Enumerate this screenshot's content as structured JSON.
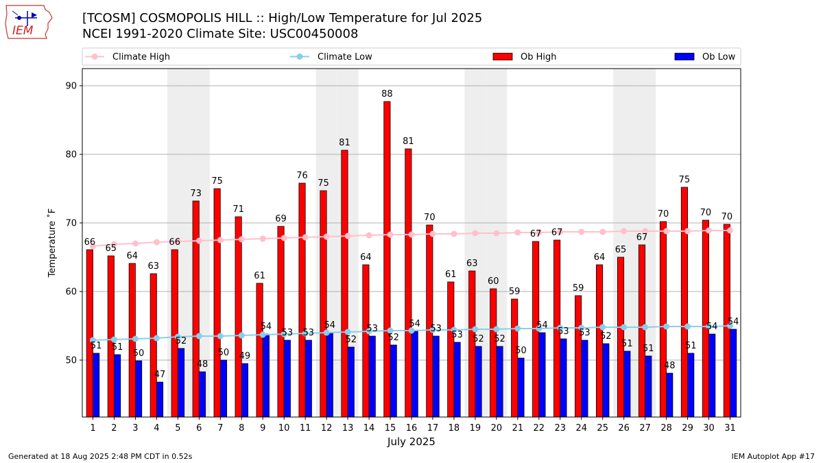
{
  "logo": {
    "text": "IEM",
    "icon": "iowa-state-outline-with-weather-station-icon"
  },
  "title_line1": "[TCOSM] COSMOPOLIS HILL  :: High/Low Temperature for Jul 2025",
  "title_line2": "NCEI 1991-2020 Climate Site: USC00450008",
  "footer_left": "Generated at 18 Aug 2025 2:48 PM CDT in 0.52s",
  "footer_right": "IEM Autoplot App #17",
  "colors": {
    "ob_high": "#ff0000",
    "ob_low": "#0000ff",
    "climate_high": "#ffc0cb",
    "climate_low": "#87ceeb",
    "weekend_band": "#eeeeee",
    "grid": "#b0b0b0"
  },
  "chart_data": {
    "type": "bar",
    "xlabel": "July 2025",
    "ylabel": "Temperature ˚F",
    "ylim": [
      41.7,
      92.5
    ],
    "yticks": [
      50,
      60,
      70,
      80,
      90
    ],
    "grid": "horizontal",
    "legend_position": "top",
    "categories": [
      "1",
      "2",
      "3",
      "4",
      "5",
      "6",
      "7",
      "8",
      "9",
      "10",
      "11",
      "12",
      "13",
      "14",
      "15",
      "16",
      "17",
      "18",
      "19",
      "20",
      "21",
      "22",
      "23",
      "24",
      "25",
      "26",
      "27",
      "28",
      "29",
      "30",
      "31"
    ],
    "weekend_days": [
      5,
      6,
      12,
      13,
      19,
      20,
      26,
      27
    ],
    "series": [
      {
        "name": "Ob High",
        "kind": "bar",
        "values": [
          66,
          65,
          64,
          63,
          66,
          73,
          75,
          71,
          61,
          69,
          76,
          75,
          81,
          64,
          88,
          81,
          70,
          61,
          63,
          60,
          59,
          67,
          67,
          59,
          64,
          65,
          67,
          70,
          75,
          70,
          70
        ],
        "plotted": [
          66.1,
          65.2,
          64.1,
          62.6,
          66.1,
          73.2,
          75.0,
          70.9,
          61.2,
          69.5,
          75.8,
          74.7,
          80.6,
          63.9,
          87.7,
          80.8,
          69.7,
          61.4,
          63.0,
          60.4,
          58.9,
          67.3,
          67.5,
          59.4,
          63.9,
          65.0,
          66.8,
          70.2,
          75.2,
          70.4,
          69.8
        ]
      },
      {
        "name": "Ob Low",
        "kind": "bar",
        "values": [
          51,
          51,
          50,
          47,
          52,
          48,
          50,
          49,
          54,
          53,
          53,
          54,
          52,
          53,
          52,
          54,
          53,
          53,
          52,
          52,
          50,
          54,
          53,
          53,
          52,
          51,
          51,
          48,
          51,
          54,
          54
        ],
        "plotted": [
          51.0,
          50.8,
          49.9,
          46.8,
          51.7,
          48.3,
          50.0,
          49.5,
          53.8,
          52.9,
          52.9,
          54.0,
          51.9,
          53.5,
          52.2,
          54.2,
          53.5,
          52.6,
          52.0,
          52.0,
          50.3,
          54.0,
          53.1,
          52.9,
          52.4,
          51.3,
          50.6,
          48.1,
          51.0,
          53.8,
          54.5
        ]
      },
      {
        "name": "Climate High",
        "kind": "line",
        "values": [
          66.6,
          66.9,
          67.0,
          67.2,
          67.3,
          67.4,
          67.5,
          67.6,
          67.7,
          67.8,
          67.9,
          68.0,
          68.1,
          68.2,
          68.3,
          68.3,
          68.4,
          68.4,
          68.5,
          68.5,
          68.6,
          68.6,
          68.7,
          68.7,
          68.7,
          68.8,
          68.8,
          68.8,
          68.8,
          68.9,
          68.9
        ]
      },
      {
        "name": "Climate Low",
        "kind": "line",
        "values": [
          52.9,
          53.0,
          53.1,
          53.2,
          53.4,
          53.5,
          53.5,
          53.6,
          53.7,
          53.8,
          53.9,
          54.0,
          54.1,
          54.2,
          54.3,
          54.3,
          54.4,
          54.4,
          54.5,
          54.5,
          54.6,
          54.6,
          54.7,
          54.7,
          54.8,
          54.8,
          54.8,
          54.9,
          54.9,
          54.9,
          55.0
        ]
      }
    ]
  }
}
